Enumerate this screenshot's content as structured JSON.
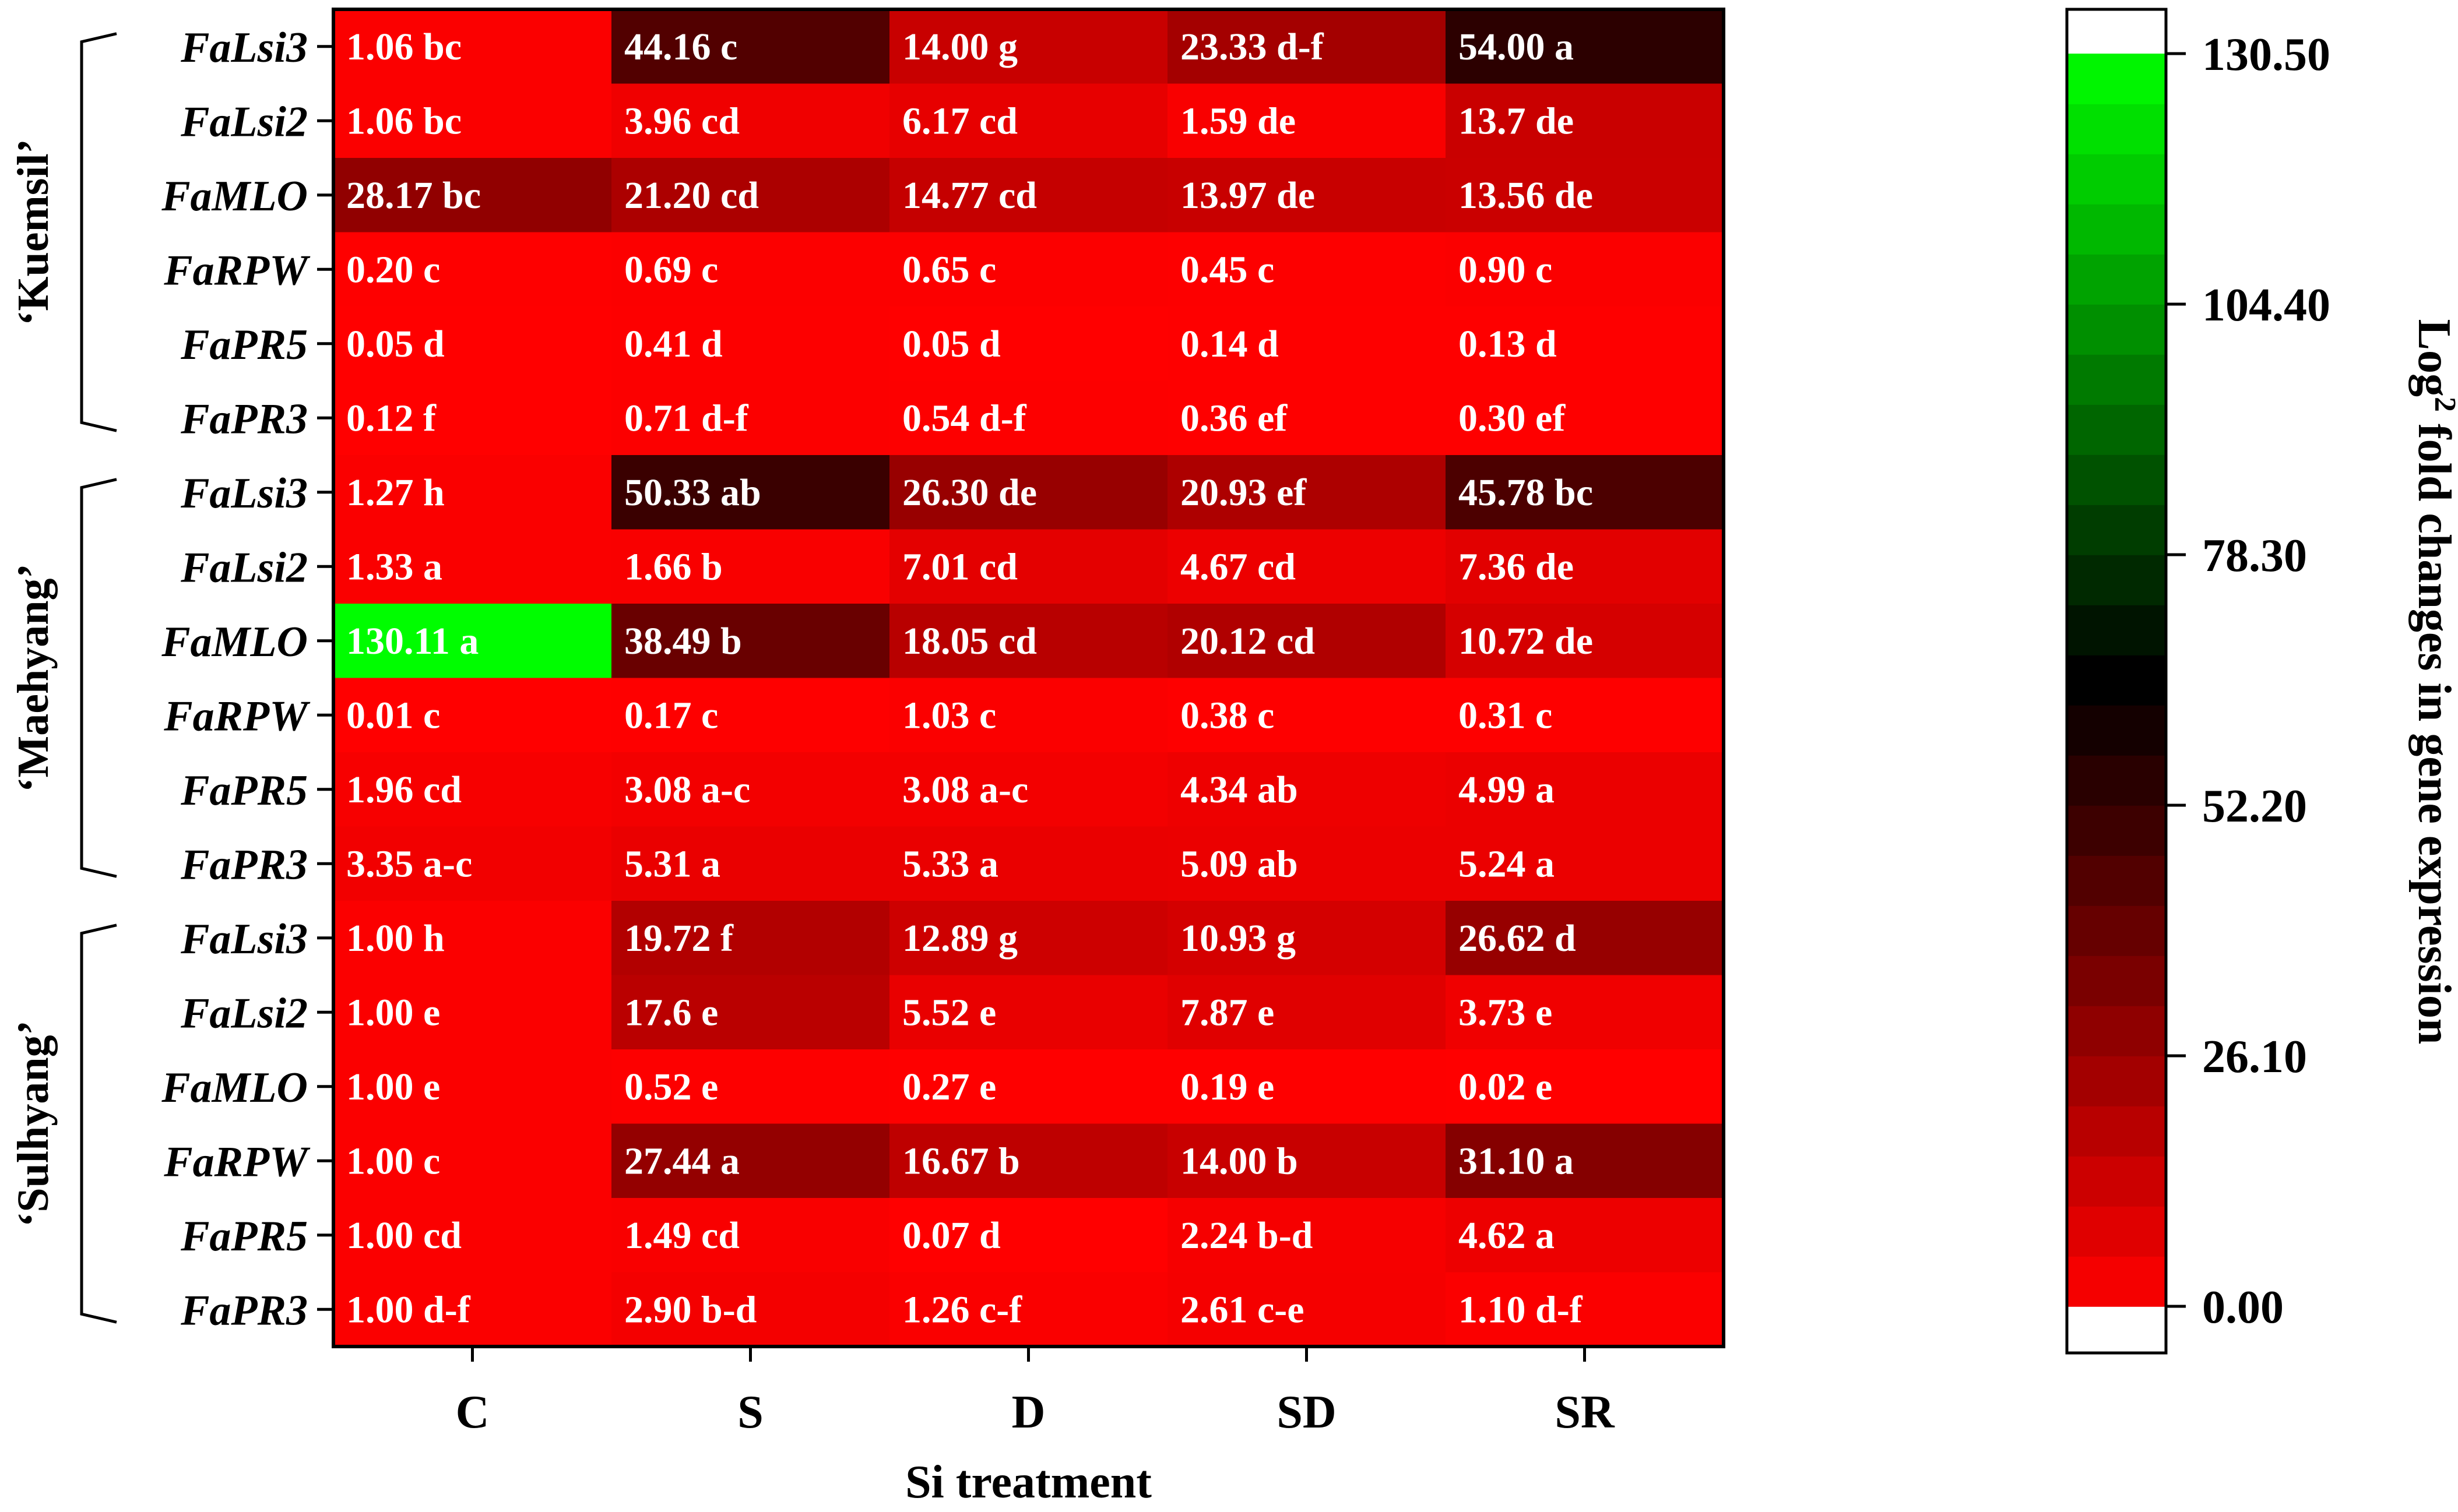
{
  "chart_data": {
    "type": "heatmap",
    "xlabel": "Si treatment",
    "columns": [
      "C",
      "S",
      "D",
      "SD",
      "SR"
    ],
    "cultivars": [
      {
        "name": "‘Kuemsil’",
        "rows": [
          {
            "gene": "FaLsi3",
            "values": [
              1.06,
              44.16,
              14.0,
              23.33,
              54.0
            ],
            "labels": [
              "1.06 bc",
              "44.16 c",
              "14.00 g",
              "23.33 d-f",
              "54.00 a"
            ]
          },
          {
            "gene": "FaLsi2",
            "values": [
              1.06,
              3.96,
              6.17,
              1.59,
              13.7
            ],
            "labels": [
              "1.06 bc",
              "3.96 cd",
              "6.17 cd",
              "1.59 de",
              "13.7 de"
            ]
          },
          {
            "gene": "FaMLO",
            "values": [
              28.17,
              21.2,
              14.77,
              13.97,
              13.56
            ],
            "labels": [
              "28.17 bc",
              "21.20 cd",
              "14.77 cd",
              "13.97 de",
              "13.56 de"
            ]
          },
          {
            "gene": "FaRPW",
            "values": [
              0.2,
              0.69,
              0.65,
              0.45,
              0.9
            ],
            "labels": [
              "0.20 c",
              "0.69 c",
              "0.65 c",
              "0.45 c",
              "0.90 c"
            ]
          },
          {
            "gene": "FaPR5",
            "values": [
              0.05,
              0.41,
              0.05,
              0.14,
              0.13
            ],
            "labels": [
              "0.05 d",
              "0.41 d",
              "0.05 d",
              "0.14 d",
              "0.13 d"
            ]
          },
          {
            "gene": "FaPR3",
            "values": [
              0.12,
              0.71,
              0.54,
              0.36,
              0.3
            ],
            "labels": [
              "0.12 f",
              "0.71 d-f",
              "0.54 d-f",
              "0.36 ef",
              "0.30 ef"
            ]
          }
        ]
      },
      {
        "name": "‘Maehyang’",
        "rows": [
          {
            "gene": "FaLsi3",
            "values": [
              1.27,
              50.33,
              26.3,
              20.93,
              45.78
            ],
            "labels": [
              "1.27 h",
              "50.33 ab",
              "26.30 de",
              "20.93 ef",
              "45.78 bc"
            ]
          },
          {
            "gene": "FaLsi2",
            "values": [
              1.33,
              1.66,
              7.01,
              4.67,
              7.36
            ],
            "labels": [
              "1.33 a",
              "1.66 b",
              "7.01 cd",
              "4.67 cd",
              "7.36 de"
            ]
          },
          {
            "gene": "FaMLO",
            "values": [
              130.11,
              38.49,
              18.05,
              20.12,
              10.72
            ],
            "labels": [
              "130.11 a",
              "38.49 b",
              "18.05 cd",
              "20.12 cd",
              "10.72 de"
            ]
          },
          {
            "gene": "FaRPW",
            "values": [
              0.01,
              0.17,
              1.03,
              0.38,
              0.31
            ],
            "labels": [
              "0.01 c",
              "0.17 c",
              "1.03 c",
              "0.38 c",
              "0.31 c"
            ]
          },
          {
            "gene": "FaPR5",
            "values": [
              1.96,
              3.08,
              3.08,
              4.34,
              4.99
            ],
            "labels": [
              "1.96 cd",
              "3.08 a-c",
              "3.08 a-c",
              "4.34 ab",
              "4.99 a"
            ]
          },
          {
            "gene": "FaPR3",
            "values": [
              3.35,
              5.31,
              5.33,
              5.09,
              5.24
            ],
            "labels": [
              "3.35 a-c",
              "5.31 a",
              "5.33 a",
              "5.09 ab",
              "5.24 a"
            ]
          }
        ]
      },
      {
        "name": "‘Sulhyang’",
        "rows": [
          {
            "gene": "FaLsi3",
            "values": [
              1.0,
              19.72,
              12.89,
              10.93,
              26.62
            ],
            "labels": [
              "1.00 h",
              "19.72 f",
              "12.89 g",
              "10.93 g",
              "26.62 d"
            ]
          },
          {
            "gene": "FaLsi2",
            "values": [
              1.0,
              17.6,
              5.52,
              7.87,
              3.73
            ],
            "labels": [
              "1.00 e",
              "17.6 e",
              "5.52 e",
              "7.87 e",
              "3.73 e"
            ]
          },
          {
            "gene": "FaMLO",
            "values": [
              1.0,
              0.52,
              0.27,
              0.19,
              0.02
            ],
            "labels": [
              "1.00 e",
              "0.52 e",
              "0.27 e",
              "0.19 e",
              "0.02 e"
            ]
          },
          {
            "gene": "FaRPW",
            "values": [
              1.0,
              27.44,
              16.67,
              14.0,
              31.1
            ],
            "labels": [
              "1.00 c",
              "27.44 a",
              "16.67 b",
              "14.00 b",
              "31.10 a"
            ]
          },
          {
            "gene": "FaPR5",
            "values": [
              1.0,
              1.49,
              0.07,
              2.24,
              4.62
            ],
            "labels": [
              "1.00 cd",
              "1.49 cd",
              "0.07 d",
              "2.24 b-d",
              "4.62 a"
            ]
          },
          {
            "gene": "FaPR3",
            "values": [
              1.0,
              2.9,
              1.26,
              2.61,
              1.1
            ],
            "labels": [
              "1.00 d-f",
              "2.90 b-d",
              "1.26 c-f",
              "2.61 c-e",
              "1.10 d-f"
            ]
          }
        ]
      }
    ],
    "colorbar": {
      "label_main": "Log",
      "label_sup": "2",
      "label_rest": " fold changes in gene expression",
      "range": [
        0.0,
        130.5
      ],
      "ticks": [
        0.0,
        26.1,
        52.2,
        78.3,
        104.4,
        130.5
      ],
      "tick_labels": [
        "0.00",
        "26.10",
        "52.20",
        "78.30",
        "104.40",
        "130.50"
      ],
      "color_stops": [
        {
          "value": 0.0,
          "color": "#ff0000"
        },
        {
          "value": 65.25,
          "color": "#000000"
        },
        {
          "value": 130.5,
          "color": "#00ff00"
        }
      ]
    }
  }
}
